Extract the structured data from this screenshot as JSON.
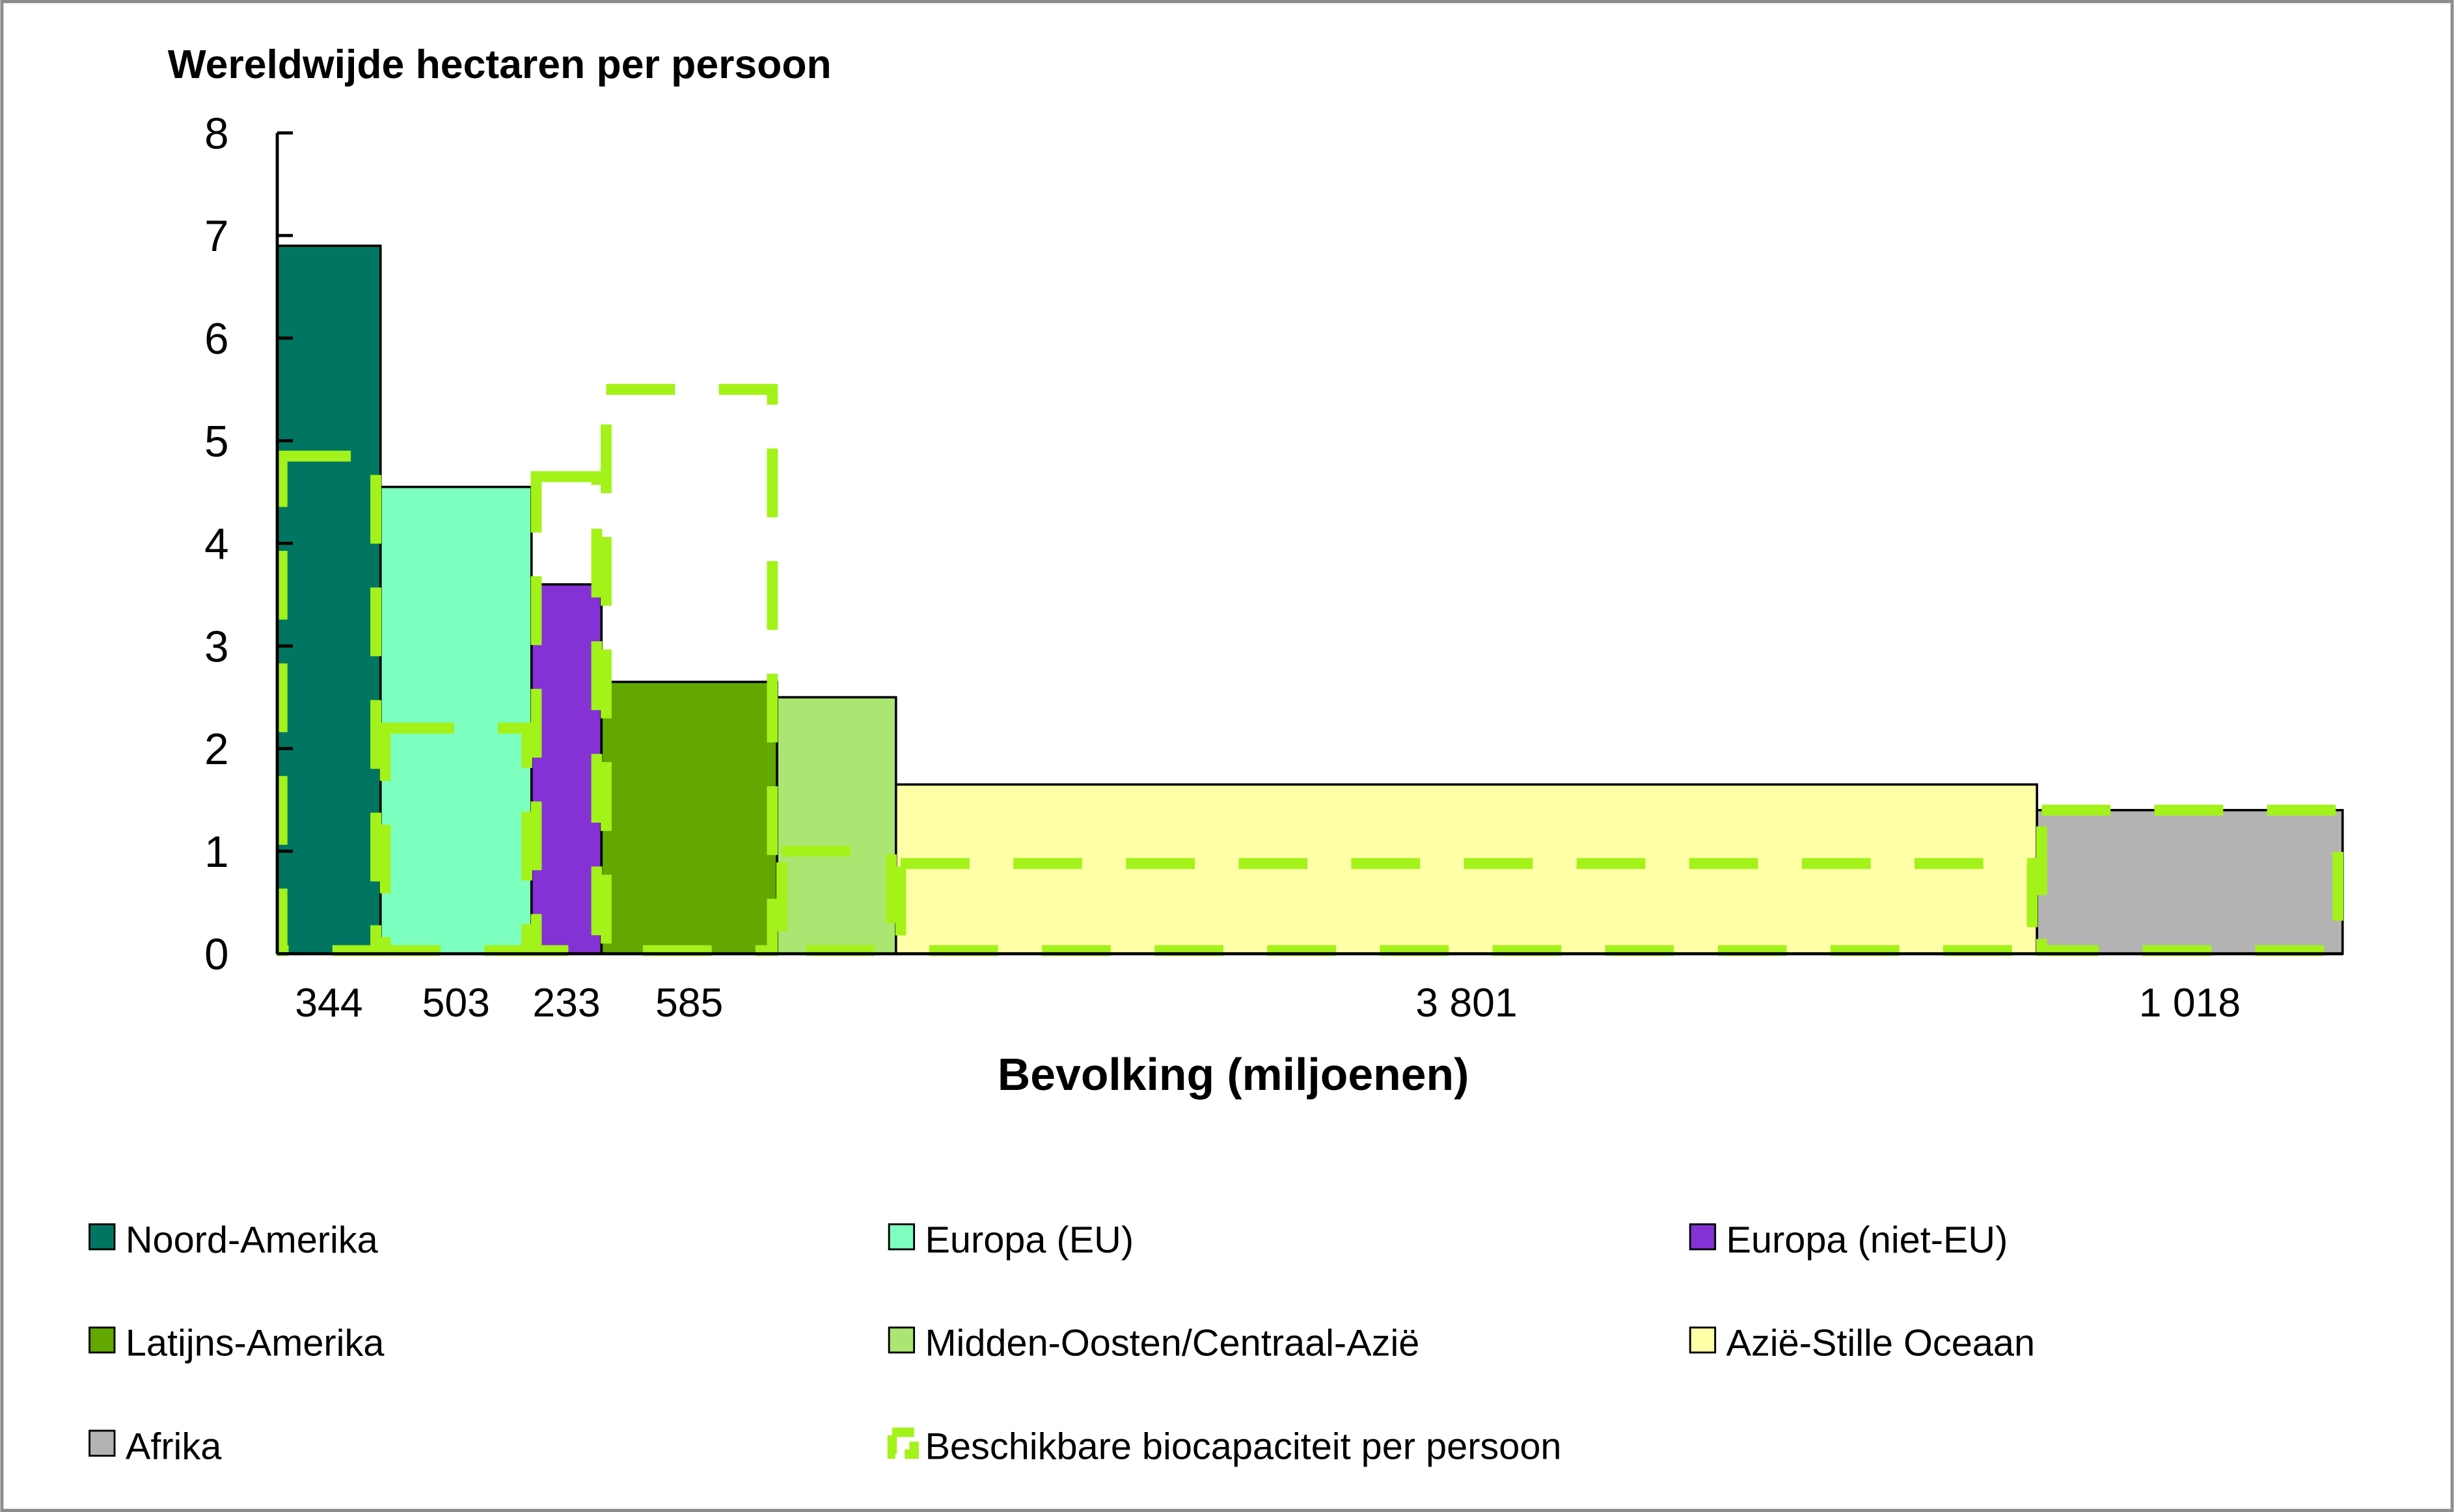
{
  "chart_data": {
    "type": "bar",
    "subtype": "variable-width",
    "title": "Wereldwijde hectaren per persoon",
    "ylabel": "Wereldwijde hectaren per persoon",
    "xlabel": "Bevolking (miljoenen)",
    "ylim": [
      0,
      8
    ],
    "yticks": [
      "0",
      "1",
      "2",
      "3",
      "4",
      "5",
      "6",
      "7",
      "8"
    ],
    "regions": [
      {
        "name": "Noord-Amerika",
        "population": 344,
        "pop_label": "344",
        "footprint": 6.9,
        "biocapacity": 4.85,
        "color": "#007662"
      },
      {
        "name": "Europa (EU)",
        "population": 503,
        "pop_label": "503",
        "footprint": 4.55,
        "biocapacity": 2.2,
        "color": "#7dffbf"
      },
      {
        "name": "Europa (niet-EU)",
        "population": 233,
        "pop_label": "233",
        "footprint": 3.6,
        "biocapacity": 4.65,
        "color": "#8432d6"
      },
      {
        "name": "Latijns-Amerika",
        "population": 585,
        "pop_label": "585",
        "footprint": 2.65,
        "biocapacity": 5.5,
        "color": "#63a800"
      },
      {
        "name": "Midden-Oosten/Centraal-Azië",
        "population": 396,
        "pop_label": "",
        "footprint": 2.5,
        "biocapacity": 1.0,
        "color": "#abe672"
      },
      {
        "name": "Azië-Stille Oceaan",
        "population": 3801,
        "pop_label": "3 801",
        "footprint": 1.65,
        "biocapacity": 0.88,
        "color": "#ffffa8"
      },
      {
        "name": "Afrika",
        "population": 1018,
        "pop_label": "1 018",
        "footprint": 1.4,
        "biocapacity": 1.4,
        "color": "#b3b3b3"
      }
    ],
    "biocapacity_legend": "Beschikbare biocapaciteit per persoon",
    "biocapacity_color": "#a3f21a",
    "legend_position": "bottom",
    "grid": false
  }
}
